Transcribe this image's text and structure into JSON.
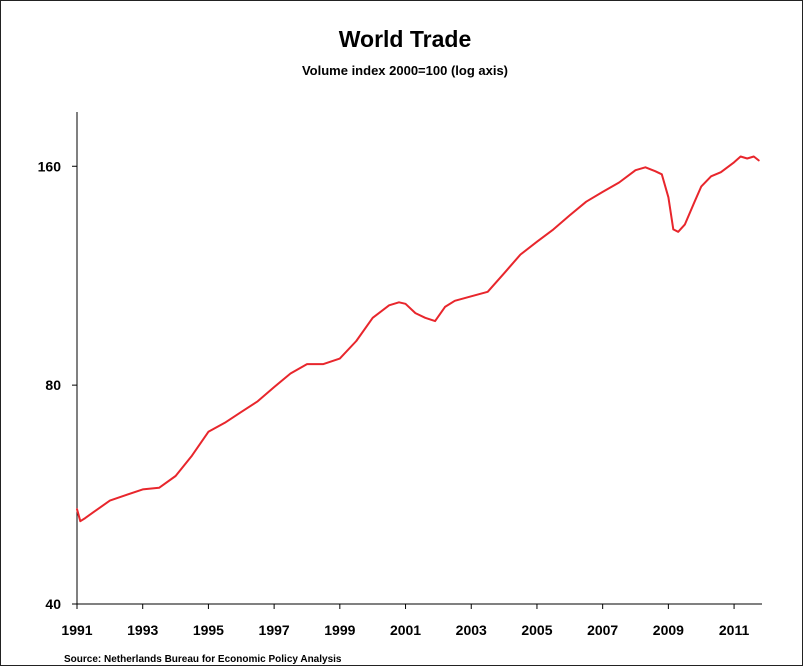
{
  "chart_data": {
    "type": "line",
    "title": "World Trade",
    "subtitle": "Volume index 2000=100 (log axis)",
    "source": "Source: Netherlands  Bureau for Economic Policy Analysis",
    "y_scale": "log",
    "ylim": [
      40,
      190
    ],
    "xlim": [
      1991.0,
      2011.85
    ],
    "y_ticks": [
      {
        "value": 40,
        "label": "40"
      },
      {
        "value": 80,
        "label": "80"
      },
      {
        "value": 160,
        "label": "160"
      }
    ],
    "x_ticks": [
      {
        "value": 1991,
        "label": "1991"
      },
      {
        "value": 1993,
        "label": "1993"
      },
      {
        "value": 1995,
        "label": "1995"
      },
      {
        "value": 1997,
        "label": "1997"
      },
      {
        "value": 1999,
        "label": "1999"
      },
      {
        "value": 2001,
        "label": "2001"
      },
      {
        "value": 2003,
        "label": "2003"
      },
      {
        "value": 2005,
        "label": "2005"
      },
      {
        "value": 2007,
        "label": "2007"
      },
      {
        "value": 2009,
        "label": "2009"
      },
      {
        "value": 2011,
        "label": "2011"
      }
    ],
    "grid": false,
    "legend": "none",
    "series": [
      {
        "color": "#e8262c",
        "x": [
          1991.0,
          1991.1,
          1991.25,
          1991.5,
          1992.0,
          1992.5,
          1993.0,
          1993.5,
          1994.0,
          1994.5,
          1995.0,
          1995.5,
          1996.0,
          1996.5,
          1997.0,
          1997.5,
          1998.0,
          1998.5,
          1999.0,
          1999.5,
          2000.0,
          2000.5,
          2000.8,
          2001.0,
          2001.3,
          2001.6,
          2001.9,
          2002.2,
          2002.5,
          2003.0,
          2003.5,
          2004.0,
          2004.5,
          2005.0,
          2005.5,
          2006.0,
          2006.5,
          2007.0,
          2007.5,
          2008.0,
          2008.3,
          2008.6,
          2008.8,
          2009.0,
          2009.15,
          2009.3,
          2009.5,
          2009.8,
          2010.0,
          2010.3,
          2010.6,
          2011.0,
          2011.2,
          2011.4,
          2011.6,
          2011.75
        ],
        "y": [
          54,
          52,
          52.5,
          53.5,
          55.5,
          56.5,
          57.5,
          57.8,
          60,
          64,
          69,
          71,
          73.5,
          76,
          79.5,
          83,
          85.5,
          85.5,
          87,
          92,
          99,
          103,
          104,
          103.5,
          100.5,
          99,
          98,
          102.5,
          104.5,
          106,
          107.5,
          114,
          121,
          126,
          131,
          137,
          143,
          147.5,
          152,
          158,
          159.5,
          157.5,
          156,
          145,
          131,
          130,
          133,
          143,
          150,
          155,
          157,
          162,
          165,
          164,
          165,
          163
        ]
      }
    ]
  }
}
